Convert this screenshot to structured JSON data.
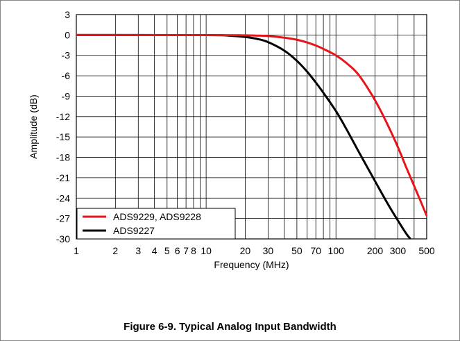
{
  "figure": {
    "caption": "Figure 6-9. Typical Analog Input Bandwidth"
  },
  "chart_data": {
    "type": "line",
    "title": "",
    "xlabel": "Frequency (MHz)",
    "ylabel": "Amplitude (dB)",
    "x_scale": "log",
    "xlim": [
      1,
      500
    ],
    "ylim": [
      -30,
      3
    ],
    "x_ticks": [
      1,
      2,
      3,
      4,
      5,
      6,
      7,
      8,
      10,
      20,
      30,
      50,
      70,
      100,
      200,
      300,
      500
    ],
    "x_tick_labels": [
      "1",
      "2",
      "3",
      "4",
      "5",
      "6",
      "7",
      "8",
      "10",
      "20",
      "30",
      "50",
      "70",
      "100",
      "200",
      "300",
      "500"
    ],
    "y_ticks": [
      3,
      0,
      -3,
      -6,
      -9,
      -12,
      -15,
      -18,
      -21,
      -24,
      -27,
      -30
    ],
    "y_tick_labels": [
      "3",
      "0",
      "-3",
      "-6",
      "-9",
      "-12",
      "-15",
      "-18",
      "-21",
      "-24",
      "-27",
      "-30"
    ],
    "grid": true,
    "legend_position": "bottom-left",
    "series": [
      {
        "name": "ADS9229, ADS9228",
        "color": "#e8141b",
        "points": [
          [
            1,
            0
          ],
          [
            10,
            -0.02
          ],
          [
            20,
            -0.05
          ],
          [
            30,
            -0.15
          ],
          [
            40,
            -0.4
          ],
          [
            50,
            -0.7
          ],
          [
            60,
            -1.1
          ],
          [
            70,
            -1.55
          ],
          [
            80,
            -2.05
          ],
          [
            100,
            -3.0
          ],
          [
            120,
            -4.1
          ],
          [
            150,
            -5.9
          ],
          [
            200,
            -9.6
          ],
          [
            250,
            -13.2
          ],
          [
            300,
            -16.5
          ],
          [
            350,
            -19.6
          ],
          [
            400,
            -22.2
          ],
          [
            450,
            -24.5
          ],
          [
            500,
            -26.6
          ]
        ]
      },
      {
        "name": "ADS9227",
        "color": "#000000",
        "points": [
          [
            1,
            0
          ],
          [
            10,
            -0.02
          ],
          [
            15,
            -0.1
          ],
          [
            20,
            -0.3
          ],
          [
            25,
            -0.6
          ],
          [
            30,
            -1.05
          ],
          [
            40,
            -2.3
          ],
          [
            50,
            -3.8
          ],
          [
            60,
            -5.4
          ],
          [
            70,
            -7.0
          ],
          [
            80,
            -8.5
          ],
          [
            100,
            -11.2
          ],
          [
            120,
            -13.8
          ],
          [
            150,
            -17.2
          ],
          [
            200,
            -21.5
          ],
          [
            250,
            -24.8
          ],
          [
            300,
            -27.3
          ],
          [
            350,
            -29.3
          ],
          [
            375,
            -30
          ]
        ]
      }
    ]
  }
}
